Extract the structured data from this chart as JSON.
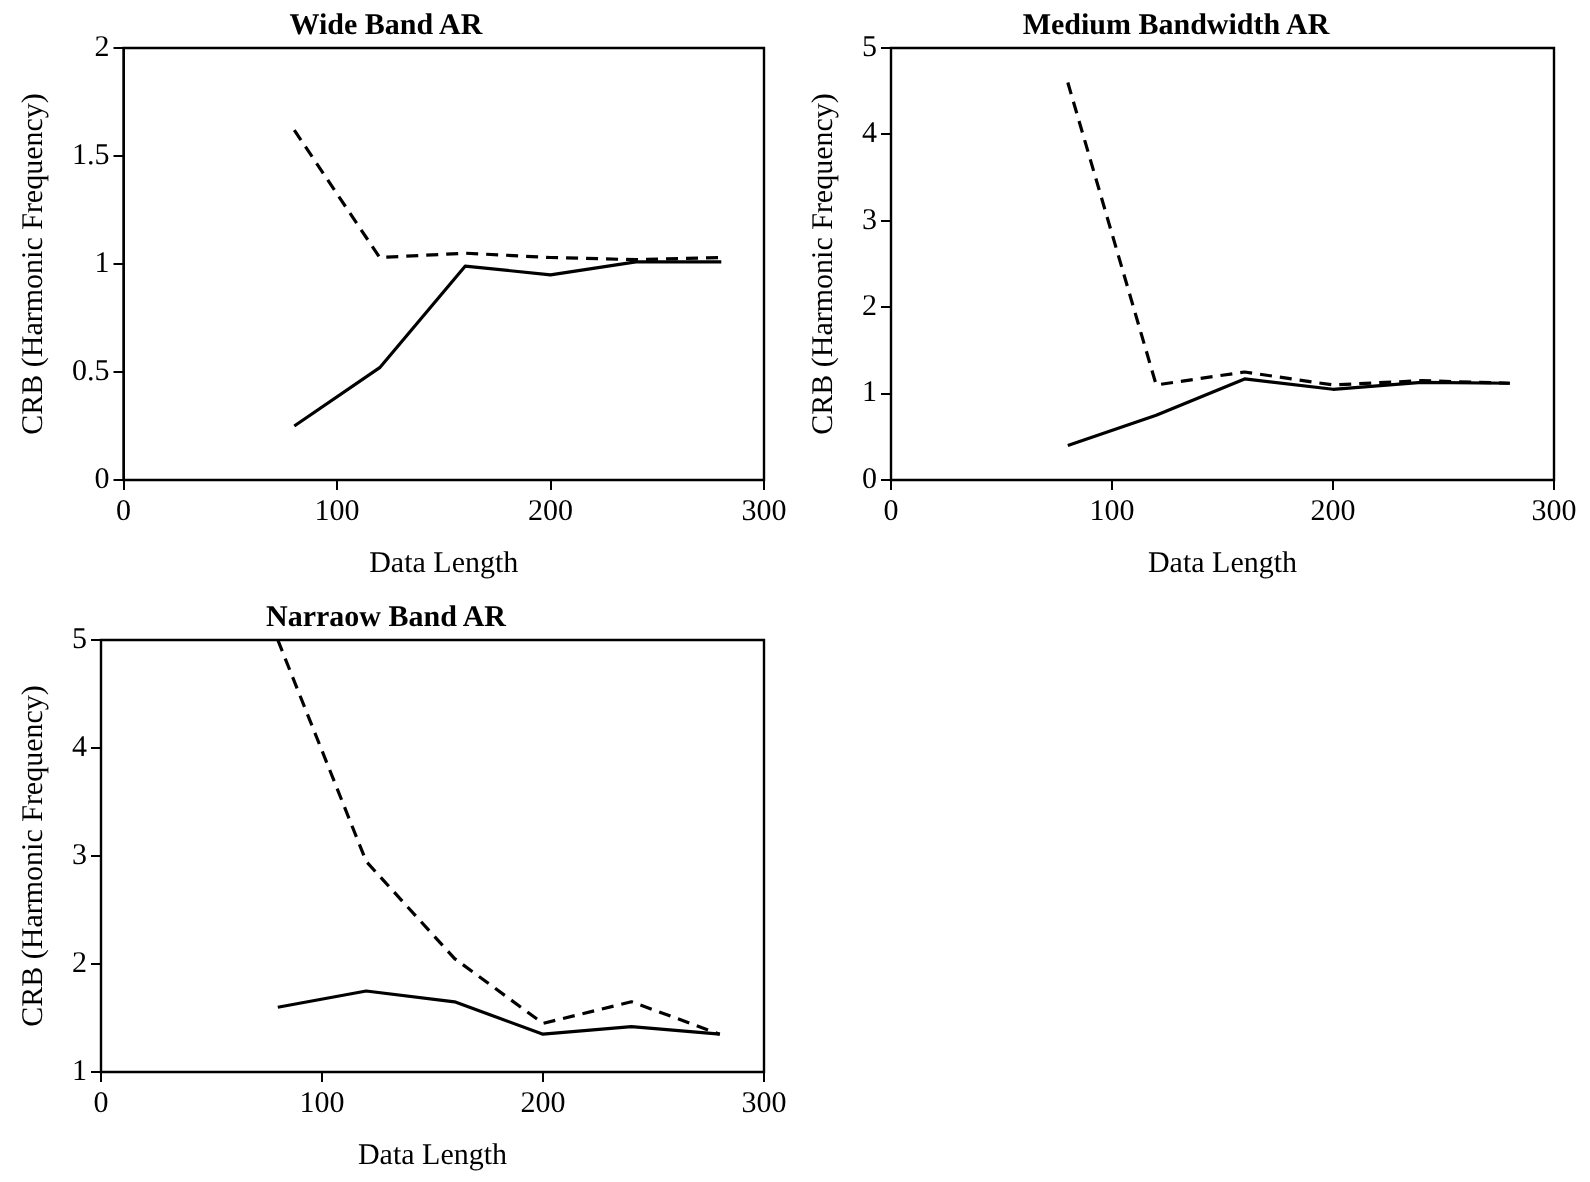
{
  "chart_data": [
    {
      "type": "line",
      "title": "Wide Band AR",
      "xlabel": "Data Length",
      "ylabel": "CRB (Harmonic Frequency)",
      "x": [
        80,
        120,
        160,
        200,
        240,
        280
      ],
      "xlim": [
        0,
        300
      ],
      "xticks": [
        0,
        100,
        200,
        300
      ],
      "ylim": [
        0,
        2
      ],
      "yticks": [
        0,
        0.5,
        1,
        1.5,
        2
      ],
      "grid": false,
      "legend": false,
      "marker": "none",
      "series": [
        {
          "color": "#000000",
          "line_style": "dashed",
          "values": [
            1.62,
            1.03,
            1.05,
            1.03,
            1.02,
            1.03
          ]
        },
        {
          "color": "#000000",
          "line_style": "solid",
          "values": [
            0.25,
            0.52,
            0.99,
            0.95,
            1.01,
            1.01
          ]
        }
      ]
    },
    {
      "type": "line",
      "title": "Medium Bandwidth AR",
      "xlabel": "Data Length",
      "ylabel": "CRB (Harmonic Frequency)",
      "x": [
        80,
        120,
        160,
        200,
        240,
        280
      ],
      "xlim": [
        0,
        300
      ],
      "xticks": [
        0,
        100,
        200,
        300
      ],
      "ylim": [
        0,
        5
      ],
      "yticks": [
        0,
        1,
        2,
        3,
        4,
        5
      ],
      "grid": false,
      "legend": false,
      "marker": "none",
      "series": [
        {
          "color": "#000000",
          "line_style": "dashed",
          "values": [
            4.6,
            1.1,
            1.25,
            1.1,
            1.15,
            1.12
          ]
        },
        {
          "color": "#000000",
          "line_style": "solid",
          "values": [
            0.4,
            0.75,
            1.17,
            1.05,
            1.13,
            1.12
          ]
        }
      ]
    },
    {
      "type": "line",
      "title": "Narraow Band AR",
      "xlabel": "Data Length",
      "ylabel": "CRB (Harmonic Frequency)",
      "x": [
        80,
        120,
        160,
        200,
        240,
        280
      ],
      "xlim": [
        0,
        300
      ],
      "xticks": [
        0,
        100,
        200,
        300
      ],
      "ylim": [
        1,
        5
      ],
      "yticks": [
        1,
        2,
        3,
        4,
        5
      ],
      "grid": false,
      "legend": false,
      "marker": "none",
      "series": [
        {
          "color": "#000000",
          "line_style": "dashed",
          "values": [
            5.0,
            2.95,
            2.05,
            1.45,
            1.65,
            1.35
          ]
        },
        {
          "color": "#000000",
          "line_style": "solid",
          "values": [
            1.6,
            1.75,
            1.65,
            1.35,
            1.42,
            1.35
          ]
        }
      ]
    }
  ]
}
